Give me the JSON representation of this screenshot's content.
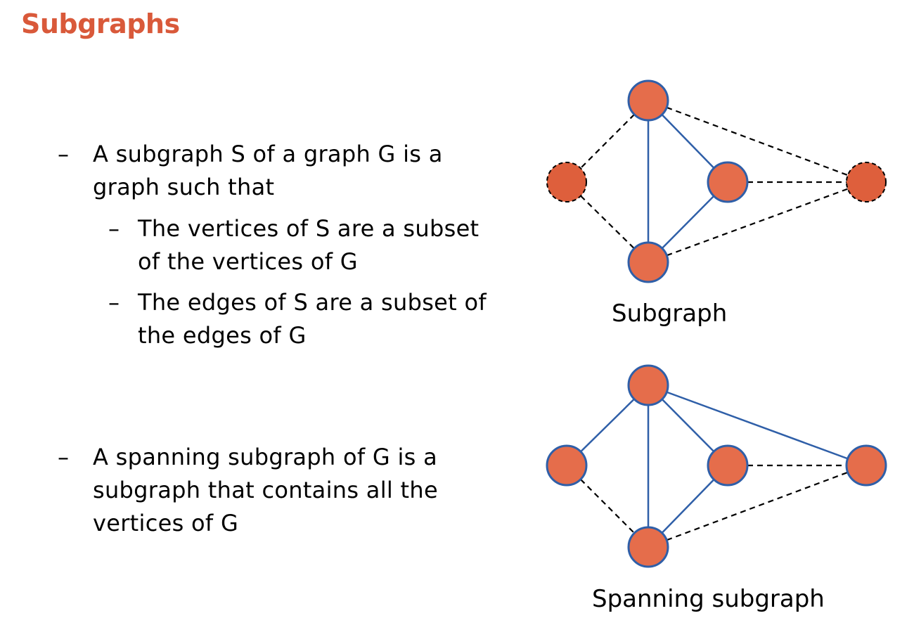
{
  "slide": {
    "title": "Subgraphs",
    "bullets": [
      {
        "dash": "–",
        "text": "A subgraph S of a graph G is a graph such that",
        "subbullets": [
          {
            "dash": "–",
            "text": "The vertices of S are a subset of the vertices of G"
          },
          {
            "dash": "–",
            "text": "The edges of S are a subset of the edges of G"
          }
        ]
      },
      {
        "dash": "–",
        "text": "A spanning subgraph of G is a subgraph that contains all the vertices of G"
      }
    ]
  },
  "colors": {
    "title": "#D9593A",
    "vertex_fill": "#E56D4B",
    "excluded_vertex_fill": "#DE5F3C",
    "edge": "#2F5FA8",
    "dashed_edge": "#000000"
  },
  "diagrams": {
    "subgraph": {
      "caption": "Subgraph",
      "vertices": [
        {
          "id": "top",
          "included": true
        },
        {
          "id": "left",
          "included": false
        },
        {
          "id": "mid",
          "included": true
        },
        {
          "id": "bottom",
          "included": true
        },
        {
          "id": "right",
          "included": false
        }
      ],
      "edges": [
        {
          "from": "top",
          "to": "bottom",
          "included": true
        },
        {
          "from": "top",
          "to": "mid",
          "included": true
        },
        {
          "from": "mid",
          "to": "bottom",
          "included": true
        },
        {
          "from": "top",
          "to": "left",
          "included": false
        },
        {
          "from": "left",
          "to": "bottom",
          "included": false
        },
        {
          "from": "top",
          "to": "right",
          "included": false
        },
        {
          "from": "mid",
          "to": "right",
          "included": false
        },
        {
          "from": "bottom",
          "to": "right",
          "included": false
        }
      ]
    },
    "spanning": {
      "caption": "Spanning subgraph",
      "vertices": [
        {
          "id": "top",
          "included": true
        },
        {
          "id": "left",
          "included": true
        },
        {
          "id": "mid",
          "included": true
        },
        {
          "id": "bottom",
          "included": true
        },
        {
          "id": "right",
          "included": true
        }
      ],
      "edges": [
        {
          "from": "top",
          "to": "left",
          "included": true
        },
        {
          "from": "top",
          "to": "bottom",
          "included": true
        },
        {
          "from": "top",
          "to": "mid",
          "included": true
        },
        {
          "from": "top",
          "to": "right",
          "included": true
        },
        {
          "from": "mid",
          "to": "bottom",
          "included": true
        },
        {
          "from": "left",
          "to": "bottom",
          "included": false
        },
        {
          "from": "mid",
          "to": "right",
          "included": false
        },
        {
          "from": "bottom",
          "to": "right",
          "included": false
        }
      ]
    }
  }
}
